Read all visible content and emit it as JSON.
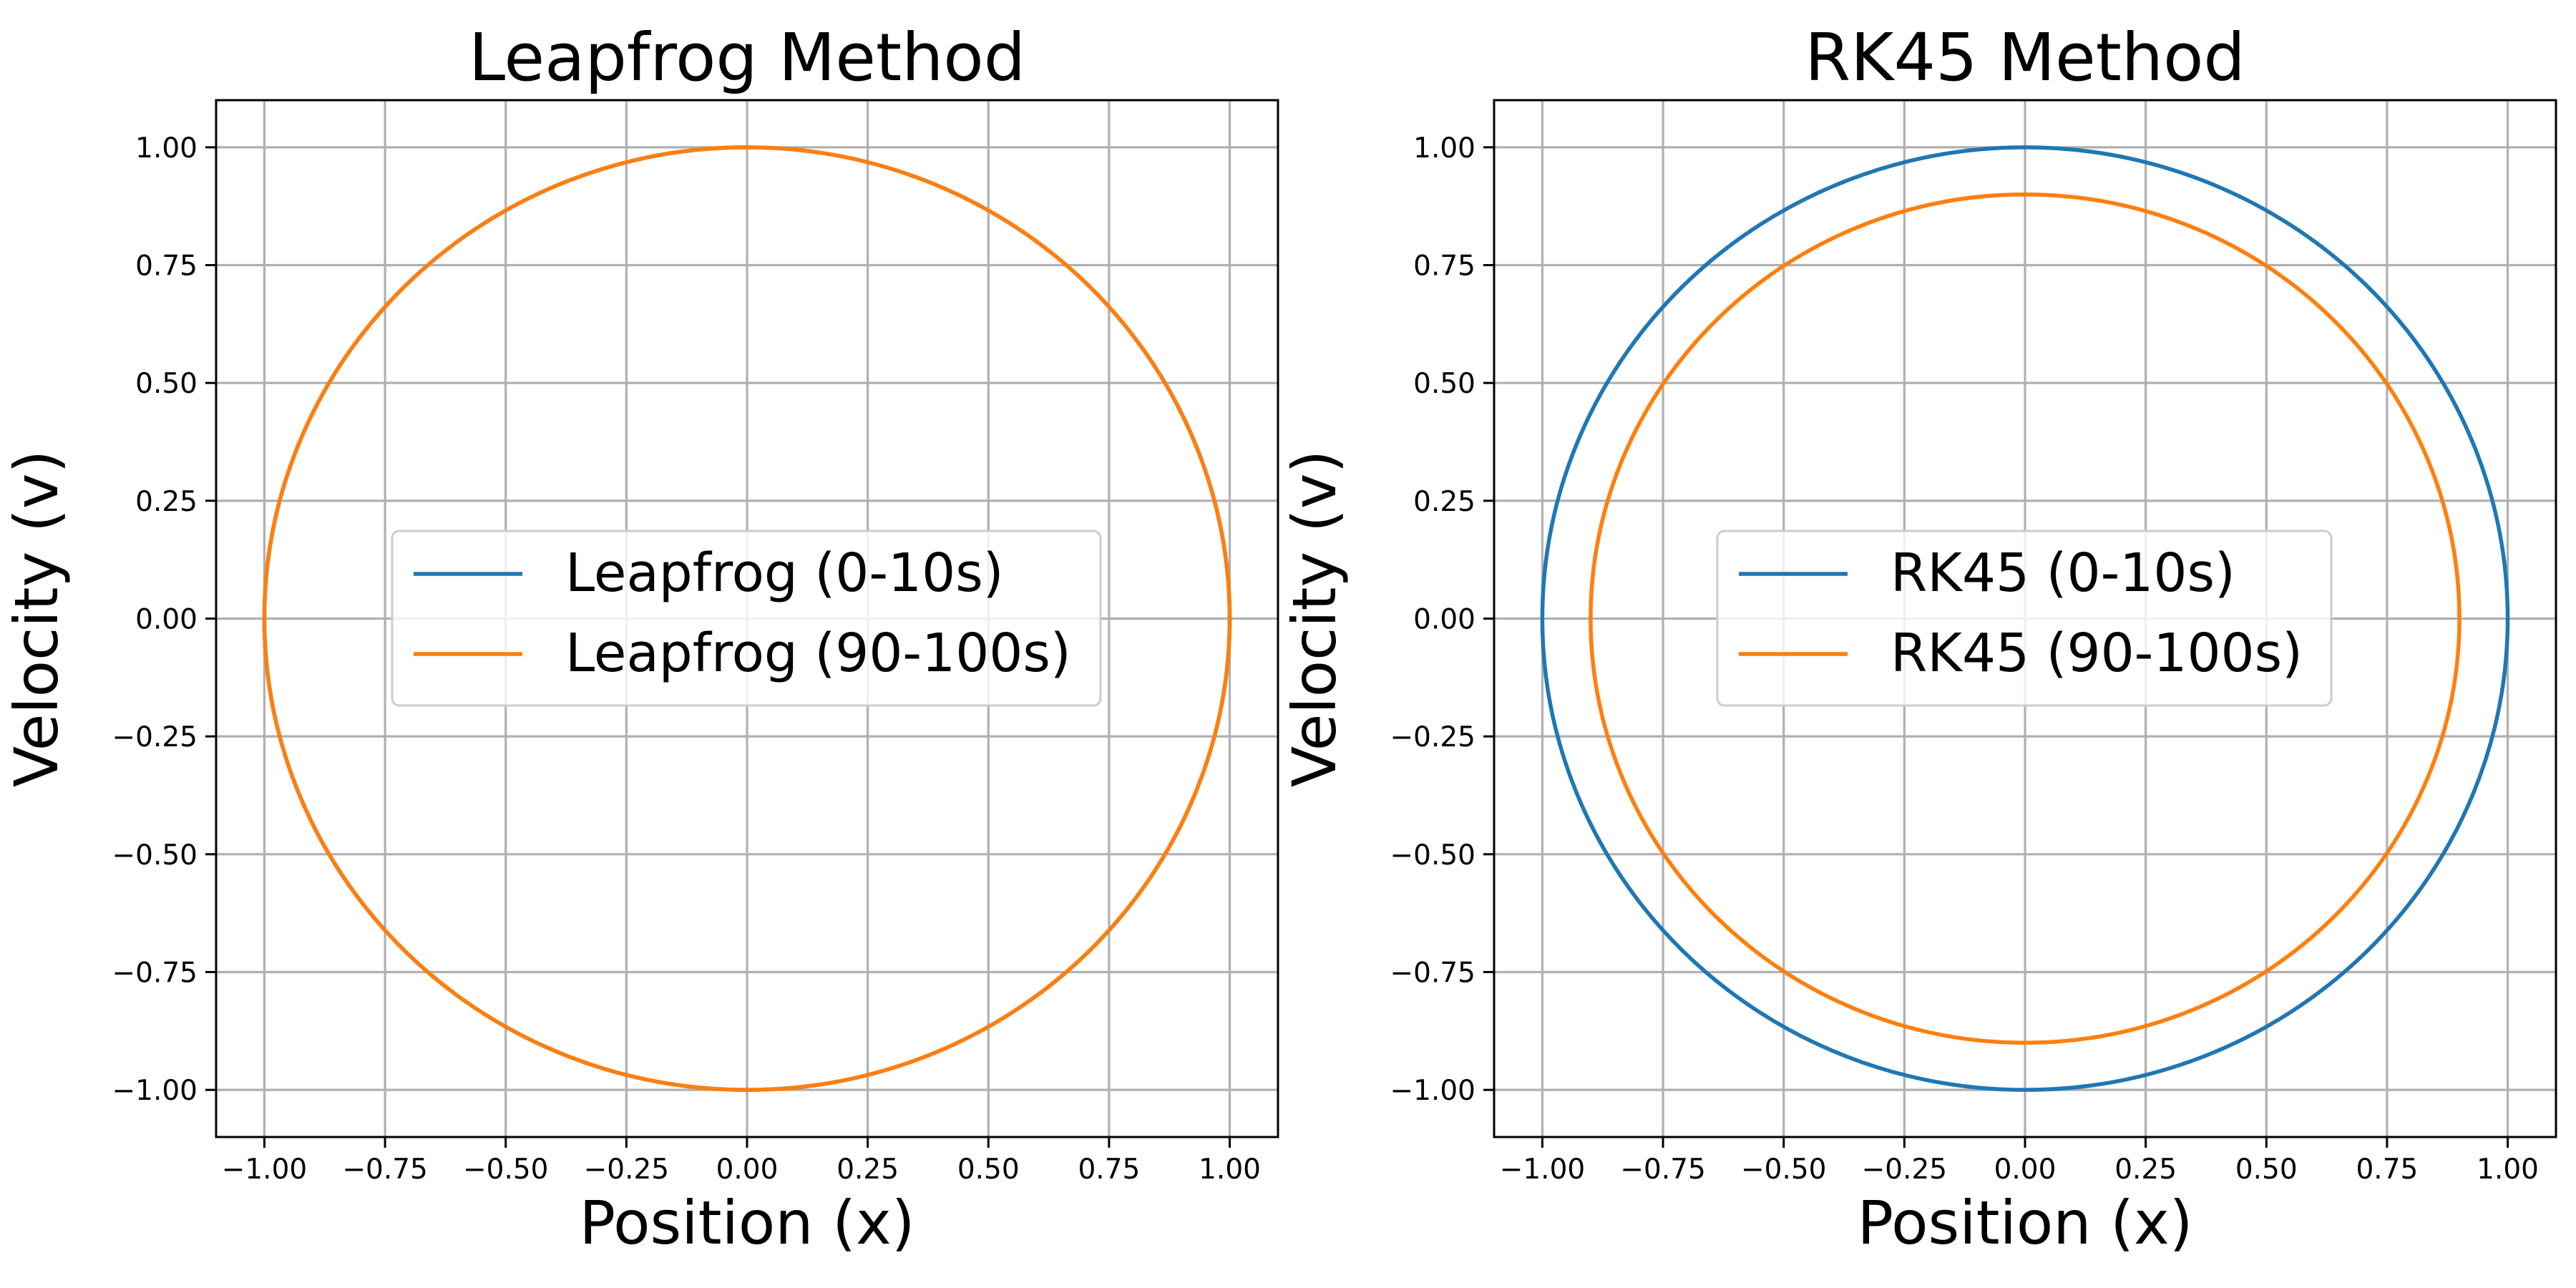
{
  "chart_data": [
    {
      "type": "line",
      "title": "Leapfrog Method",
      "xlabel": "Position (x)",
      "ylabel": "Velocity (v)",
      "xlim": [
        -1.1,
        1.1
      ],
      "ylim": [
        -1.1,
        1.1
      ],
      "xticks": [
        "−1.00",
        "−0.75",
        "−0.50",
        "−0.25",
        "0.00",
        "0.25",
        "0.50",
        "0.75",
        "1.00"
      ],
      "yticks": [
        "−1.00",
        "−0.75",
        "−0.50",
        "−0.25",
        "0.00",
        "0.25",
        "0.50",
        "0.75",
        "1.00"
      ],
      "grid": true,
      "legend": "center",
      "series": [
        {
          "name": "Leapfrog (0-10s)",
          "color": "#1f77b4",
          "shape": "circle",
          "radius_x": 1.0,
          "radius_y": 1.0
        },
        {
          "name": "Leapfrog (90-100s)",
          "color": "#ff7f0e",
          "shape": "circle",
          "radius_x": 1.0,
          "radius_y": 1.0
        }
      ]
    },
    {
      "type": "line",
      "title": "RK45 Method",
      "xlabel": "Position (x)",
      "ylabel": "Velocity (v)",
      "xlim": [
        -1.1,
        1.1
      ],
      "ylim": [
        -1.1,
        1.1
      ],
      "xticks": [
        "−1.00",
        "−0.75",
        "−0.50",
        "−0.25",
        "0.00",
        "0.25",
        "0.50",
        "0.75",
        "1.00"
      ],
      "yticks": [
        "−1.00",
        "−0.75",
        "−0.50",
        "−0.25",
        "0.00",
        "0.25",
        "0.50",
        "0.75",
        "1.00"
      ],
      "grid": true,
      "legend": "center",
      "series": [
        {
          "name": "RK45 (0-10s)",
          "color": "#1f77b4",
          "shape": "circle",
          "radius_x": 1.0,
          "radius_y": 1.0
        },
        {
          "name": "RK45 (90-100s)",
          "color": "#ff7f0e",
          "shape": "circle",
          "radius_x": 0.9,
          "radius_y": 0.9
        }
      ]
    }
  ]
}
